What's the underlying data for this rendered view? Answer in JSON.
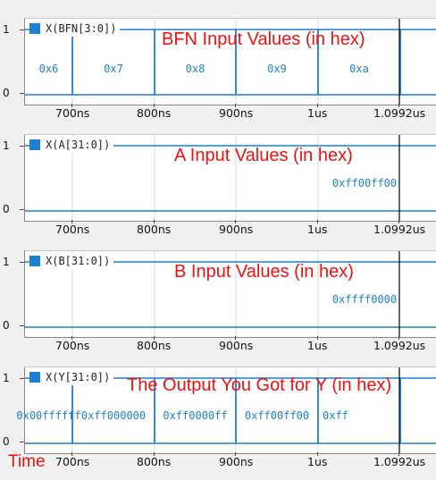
{
  "y_ticks": [
    "1",
    "0"
  ],
  "x_ticks": [
    "700ns",
    "800ns",
    "900ns",
    "1us",
    "1.0992us"
  ],
  "time_label": "Time",
  "colors": {
    "signal": "#1f7fd0",
    "annotation": "#ee1111",
    "grid": "#d8d8d8",
    "cursor": "#000000"
  },
  "panels": [
    {
      "signal": "X(BFN[3:0])",
      "title": "BFN Input Values (in hex)",
      "values": [
        "0x6",
        "0x7",
        "0x8",
        "0x9",
        "0xa",
        ""
      ]
    },
    {
      "signal": "X(A[31:0])",
      "title": "A Input Values (in hex)",
      "values": [
        "0xff00ff00"
      ]
    },
    {
      "signal": "X(B[31:0])",
      "title": "B Input Values (in hex)",
      "values": [
        "0xffff0000"
      ]
    },
    {
      "signal": "X(Y[31:0])",
      "title": "The Output You Got for Y (in hex)",
      "values": [
        "0x00ffffff",
        "0xff000000",
        "0xff0000ff",
        "0xff00ff00",
        "0xff"
      ]
    }
  ]
}
